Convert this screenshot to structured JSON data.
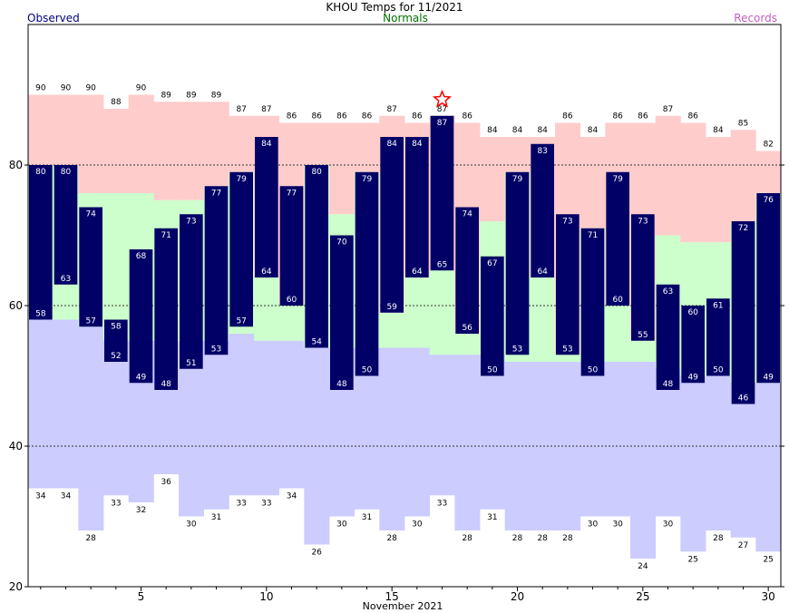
{
  "chart_data": {
    "type": "bar",
    "title": "KHOU Temps for 11/2021",
    "xlabel": "November 2021",
    "ylabel": "",
    "ylim": [
      20,
      100
    ],
    "xlim": [
      0.5,
      30.5
    ],
    "legend": {
      "observed": "Observed",
      "normals": "Normals",
      "records": "Records"
    },
    "y_ticks": [
      20,
      40,
      60,
      80
    ],
    "x_ticks": [
      5,
      10,
      15,
      20,
      25,
      30
    ],
    "gridlines": [
      40,
      60,
      80
    ],
    "days": [
      1,
      2,
      3,
      4,
      5,
      6,
      7,
      8,
      9,
      10,
      11,
      12,
      13,
      14,
      15,
      16,
      17,
      18,
      19,
      20,
      21,
      22,
      23,
      24,
      25,
      26,
      27,
      28,
      29,
      30
    ],
    "series": [
      {
        "name": "Record High",
        "values": [
          90,
          90,
          90,
          88,
          90,
          89,
          89,
          89,
          87,
          87,
          86,
          86,
          86,
          86,
          87,
          86,
          87,
          86,
          84,
          84,
          84,
          86,
          84,
          86,
          86,
          87,
          86,
          84,
          85,
          82
        ]
      },
      {
        "name": "Record Low",
        "values": [
          34,
          34,
          28,
          33,
          32,
          36,
          30,
          31,
          33,
          33,
          34,
          26,
          30,
          31,
          28,
          30,
          33,
          28,
          31,
          28,
          28,
          28,
          30,
          30,
          24,
          30,
          25,
          28,
          27,
          25
        ]
      },
      {
        "name": "Normal High",
        "values": [
          80,
          80,
          76,
          76,
          76,
          75,
          75,
          77,
          79,
          64,
          60,
          80,
          73,
          79,
          59,
          64,
          65,
          56,
          72,
          79,
          64,
          53,
          71,
          60,
          55,
          70,
          69,
          69,
          72,
          76
        ]
      },
      {
        "name": "Normal Low",
        "values": [
          58,
          58,
          57,
          55,
          55,
          55,
          55,
          55,
          56,
          55,
          55,
          54,
          54,
          54,
          54,
          54,
          53,
          53,
          53,
          52,
          52,
          52,
          52,
          52,
          52,
          51,
          50,
          50,
          49,
          49
        ]
      },
      {
        "name": "Observed High",
        "values": [
          80,
          80,
          74,
          58,
          68,
          71,
          73,
          77,
          79,
          84,
          77,
          80,
          70,
          79,
          84,
          84,
          87,
          74,
          67,
          79,
          83,
          73,
          71,
          79,
          73,
          63,
          60,
          61,
          72,
          76
        ]
      },
      {
        "name": "Observed Low",
        "values": [
          58,
          63,
          57,
          52,
          49,
          48,
          51,
          53,
          57,
          64,
          60,
          54,
          48,
          50,
          59,
          64,
          65,
          56,
          50,
          53,
          64,
          53,
          50,
          60,
          55,
          48,
          49,
          50,
          46,
          49
        ]
      }
    ],
    "record_marker_day": 17,
    "colors": {
      "record_band": "#ffcccc",
      "normal_band": "#ccffcc",
      "low_band": "#ccccff",
      "observed_bar": "#000066",
      "observed_text": "#000080",
      "normals_text": "#007000",
      "records_text": "#c060c0",
      "star": "#ff0000"
    }
  }
}
